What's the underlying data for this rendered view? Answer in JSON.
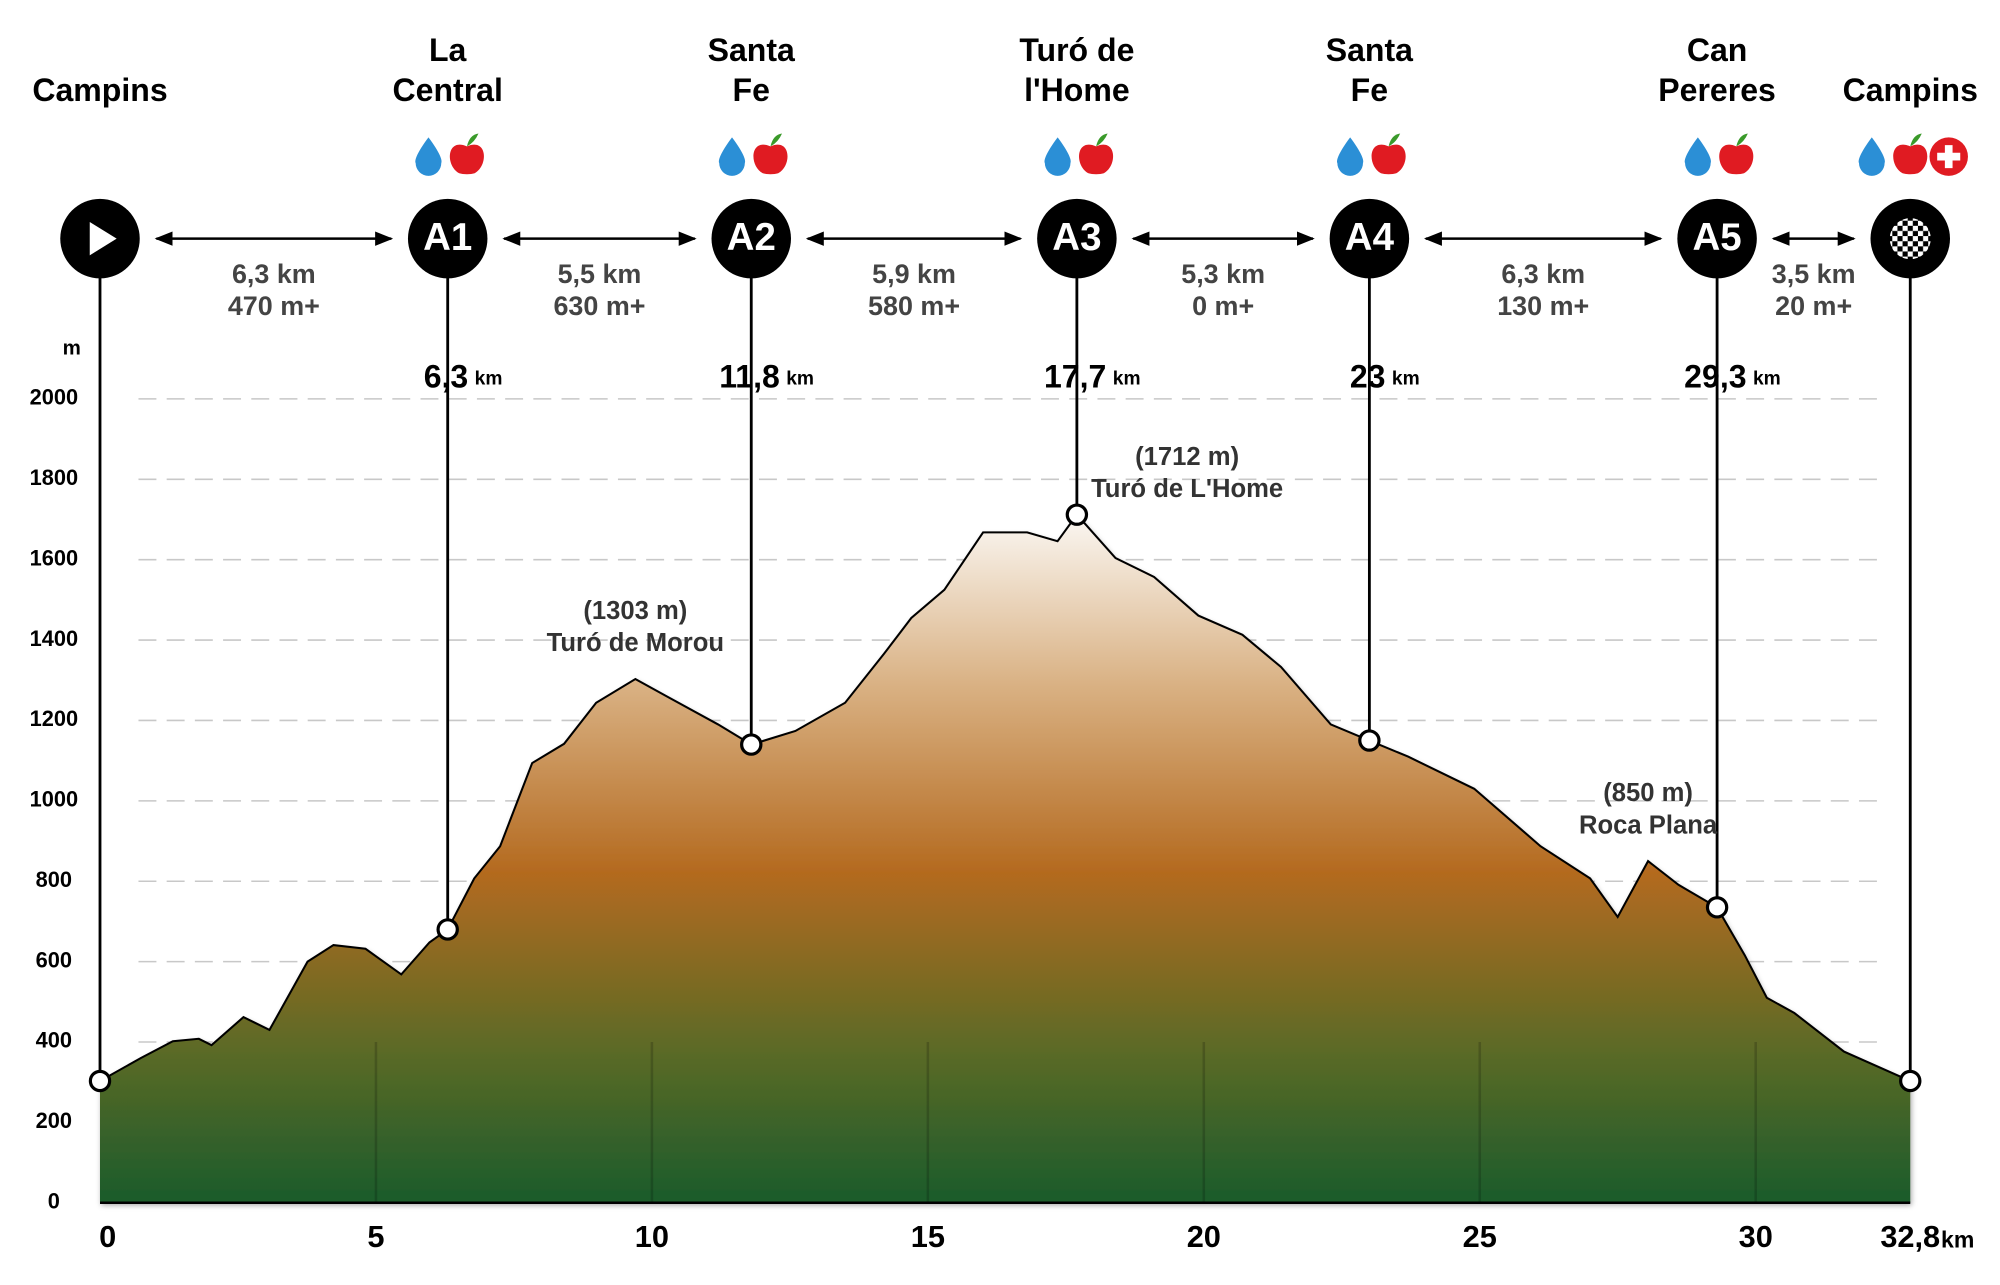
{
  "chart_data": {
    "type": "area",
    "x_label": "km",
    "y_label": "m",
    "xlim": [
      0,
      32.8
    ],
    "ylim": [
      0,
      2000
    ],
    "xticks": [
      0,
      5,
      10,
      15,
      20,
      25,
      30,
      {
        "value": 32.8,
        "label": "32,8"
      }
    ],
    "yticks": [
      0,
      200,
      400,
      600,
      800,
      1000,
      1200,
      1400,
      1600,
      1800,
      2000
    ],
    "grid": true,
    "x": [
      0,
      0.74,
      1.32,
      1.79,
      2.02,
      2.6,
      3.07,
      3.76,
      4.23,
      4.81,
      5.46,
      5.97,
      6.3,
      6.78,
      7.25,
      7.83,
      8.41,
      8.99,
      9.7,
      10.27,
      11.2,
      11.8,
      12.6,
      13.5,
      14.2,
      14.7,
      15.3,
      16.0,
      16.8,
      17.35,
      17.7,
      18.4,
      19.1,
      19.9,
      20.7,
      21.4,
      22.3,
      23,
      23.7,
      24.9,
      26.1,
      27.0,
      27.5,
      28.05,
      28.6,
      29.3,
      29.8,
      30.2,
      30.7,
      31.6,
      32.8
    ],
    "values": [
      303,
      360,
      402,
      408,
      392,
      462,
      430,
      600,
      641,
      632,
      568,
      648,
      680,
      807,
      887,
      1094,
      1142,
      1244,
      1303,
      1260,
      1190,
      1140,
      1174,
      1244,
      1365,
      1455,
      1525,
      1668,
      1668,
      1646,
      1712,
      1604,
      1557,
      1461,
      1413,
      1333,
      1190,
      1150,
      1110,
      1030,
      887,
      807,
      711,
      850,
      791,
      735,
      616,
      510,
      472,
      376,
      303
    ],
    "stations": [
      {
        "name": [
          "Campins"
        ],
        "km": 0,
        "elevation": 303
      },
      {
        "name": [
          "La",
          "Central"
        ],
        "code": "A1",
        "km": {
          "value": 6.3,
          "label": "6,3"
        },
        "elevation": 680,
        "services": [
          "water",
          "food"
        ]
      },
      {
        "name": [
          "Santa",
          "Fe"
        ],
        "code": "A2",
        "km": {
          "value": 11.8,
          "label": "11,8"
        },
        "elevation": 1140,
        "services": [
          "water",
          "food"
        ]
      },
      {
        "name": [
          "Turó de",
          "l'Home"
        ],
        "code": "A3",
        "km": {
          "value": 17.7,
          "label": "17,7"
        },
        "elevation": 1712,
        "services": [
          "water",
          "food"
        ]
      },
      {
        "name": [
          "Santa",
          "Fe"
        ],
        "code": "A4",
        "km": 23,
        "elevation": 1150,
        "services": [
          "water",
          "food"
        ]
      },
      {
        "name": [
          "Can",
          "Pereres"
        ],
        "code": "A5",
        "km": {
          "value": 29.3,
          "label": "29,3"
        },
        "elevation": 735,
        "services": [
          "water",
          "food"
        ]
      },
      {
        "name": [
          "Campins"
        ],
        "km": 32.8,
        "elevation": 303,
        "services": [
          "water",
          "food",
          "medical"
        ]
      }
    ],
    "segments": [
      {
        "distance": "6,3 km",
        "gain": "470 m+"
      },
      {
        "distance": "5,5 km",
        "gain": "630 m+"
      },
      {
        "distance": "5,9 km",
        "gain": "580 m+"
      },
      {
        "distance": "5,3 km",
        "gain": "0 m+"
      },
      {
        "distance": "6,3 km",
        "gain": "130 m+"
      },
      {
        "distance": "3,5 km",
        "gain": "20 m+"
      }
    ],
    "peaks": [
      {
        "km": 9.7,
        "elevation": 1303,
        "elevation_label": "(1303 m)",
        "name": "Turó de Morou"
      },
      {
        "km": 17.7,
        "elevation": 1712,
        "elevation_label": "(1712 m)",
        "name": "Turó de L'Home"
      },
      {
        "km": 28.05,
        "elevation": 850,
        "elevation_label": "(850 m)",
        "name": "Roca Plana"
      }
    ]
  }
}
